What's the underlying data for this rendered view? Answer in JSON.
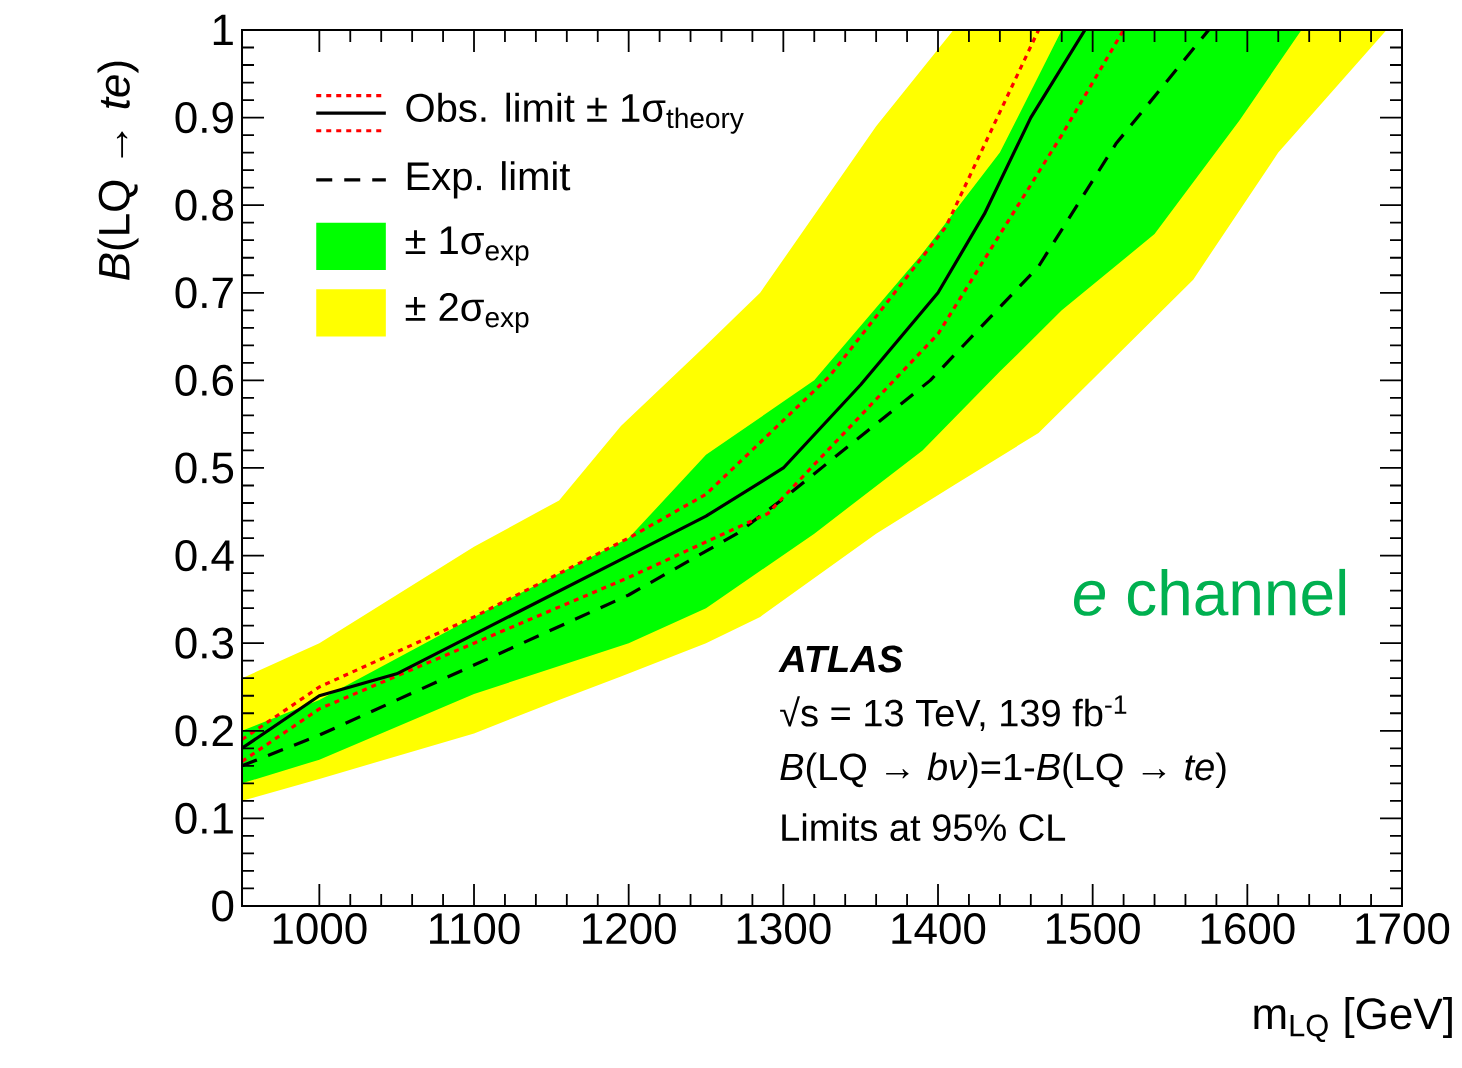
{
  "chart_data": {
    "type": "line",
    "xlabel": "m$_{LQ}$ [GeV]",
    "ylabel": "*B*(LQ → *te*)",
    "xlim": [
      950,
      1700
    ],
    "ylim": [
      0,
      1
    ],
    "xticks": [
      1000,
      1100,
      1200,
      1300,
      1400,
      1500,
      1600,
      1700
    ],
    "yticks": [
      0,
      0.1,
      0.2,
      0.3,
      0.4,
      0.5,
      0.6,
      0.7,
      0.8,
      0.9,
      1
    ],
    "legend": "top left",
    "series": [
      {
        "name": "Obs. limit ± 1σ$_{theory}$",
        "color": "#000000",
        "line_style": "solid",
        "x": [
          950,
          1000,
          1050,
          1100,
          1200,
          1250,
          1300,
          1350,
          1400,
          1430,
          1460,
          1495
        ],
        "values": [
          0.18,
          0.24,
          0.265,
          0.31,
          0.4,
          0.445,
          0.5,
          0.595,
          0.7,
          0.79,
          0.9,
          1.0
        ]
      },
      {
        "color": "#ff0000",
        "line_style": "dotted",
        "x": [
          950,
          1000,
          1100,
          1200,
          1250,
          1330,
          1405,
          1465
        ],
        "values": [
          0.19,
          0.25,
          0.33,
          0.42,
          0.47,
          0.605,
          0.775,
          1.0
        ]
      },
      {
        "color": "#ff0000",
        "line_style": "dotted",
        "x": [
          950,
          1000,
          1100,
          1200,
          1290,
          1400,
          1480,
          1520
        ],
        "values": [
          0.165,
          0.225,
          0.3,
          0.375,
          0.448,
          0.653,
          0.88,
          1.0
        ]
      },
      {
        "name": "Exp. limit",
        "color": "#000000",
        "line_style": "dashed",
        "x": [
          950,
          1000,
          1100,
          1200,
          1270,
          1300,
          1395,
          1465,
          1515,
          1575
        ],
        "values": [
          0.16,
          0.195,
          0.275,
          0.355,
          0.425,
          0.465,
          0.6,
          0.73,
          0.87,
          1.0
        ]
      },
      {
        "name": "± 1σ$_{exp}$",
        "type": "area",
        "color": "#00ff00",
        "x": [
          950,
          1000,
          1100,
          1200,
          1250,
          1320,
          1390,
          1440,
          1480,
          1540,
          1595,
          1635
        ],
        "values": [
          null,
          null,
          null,
          null,
          null,
          null,
          null,
          null,
          null,
          null,
          null,
          null
        ],
        "lower": [
          0.14,
          0.167,
          0.242,
          0.3,
          0.34,
          0.425,
          0.52,
          0.61,
          0.68,
          0.767,
          0.897,
          1.0
        ],
        "upper": [
          0.2,
          0.235,
          0.33,
          0.42,
          0.515,
          0.6,
          0.745,
          0.86,
          1.0,
          1.0,
          1.0,
          1.0
        ]
      },
      {
        "name": "± 2σ$_{exp}$",
        "type": "area",
        "color": "#ffff00",
        "x": [
          950,
          1000,
          1100,
          1155,
          1195,
          1250,
          1285,
          1360,
          1410,
          1465,
          1565,
          1620,
          1690
        ],
        "values": [
          null,
          null,
          null,
          null,
          null,
          null,
          null,
          null,
          null,
          null,
          null,
          null,
          null
        ],
        "lower": [
          0.12,
          0.145,
          0.197,
          0.235,
          0.262,
          0.3,
          0.33,
          0.425,
          0.48,
          0.54,
          0.715,
          0.86,
          1.0
        ],
        "upper": [
          0.26,
          0.3,
          0.41,
          0.463,
          0.548,
          0.64,
          0.7,
          0.89,
          1.0,
          1.0,
          1.0,
          1.0,
          1.0
        ]
      }
    ],
    "annotations": [
      "ATLAS",
      "√s = 13 TeV, 139 fb$^{-1}$",
      "*B*(LQ → *bν*)=1-*B*(LQ → *te*)",
      "Limits at 95% CL",
      "*e* channel"
    ]
  }
}
